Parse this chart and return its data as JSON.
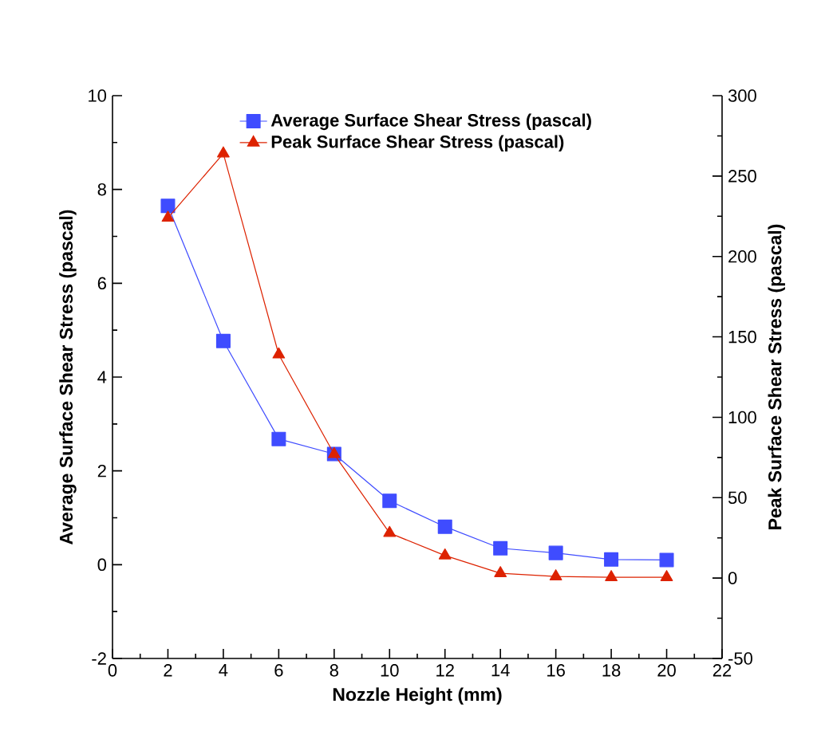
{
  "chart_data": {
    "type": "line",
    "xlabel": "Nozzle Height (mm)",
    "ylabel": "Average Surface Shear Stress  (pascal)",
    "y2label": "Peak Surface Shear Stress (pascal)",
    "x": [
      2,
      4,
      6,
      8,
      10,
      12,
      14,
      16,
      18,
      20
    ],
    "series": [
      {
        "name": "Average Surface Shear Stress  (pascal)",
        "color": "#3f4cff",
        "marker": "square",
        "values": [
          7.65,
          4.77,
          2.68,
          2.36,
          1.36,
          0.81,
          0.35,
          0.25,
          0.11,
          0.1
        ]
      },
      {
        "name": "Peak Surface Shear Stress (pascal)",
        "color": "#dd2200",
        "marker": "triangle",
        "axis": "y2",
        "values": [
          224,
          264,
          139,
          77,
          28,
          14,
          3,
          1,
          0.5,
          0.5
        ]
      }
    ],
    "xlim": [
      0,
      22
    ],
    "xticks": [
      0,
      2,
      4,
      6,
      8,
      10,
      12,
      14,
      16,
      18,
      20,
      22
    ],
    "ylim": [
      -2,
      10
    ],
    "yticks": [
      -2,
      0,
      2,
      4,
      6,
      8,
      10
    ],
    "y2lim": [
      -50,
      300
    ],
    "y2ticks": [
      -50,
      0,
      50,
      100,
      150,
      200,
      250,
      300
    ],
    "legend": "top",
    "line_style": "solid",
    "grid": false
  }
}
